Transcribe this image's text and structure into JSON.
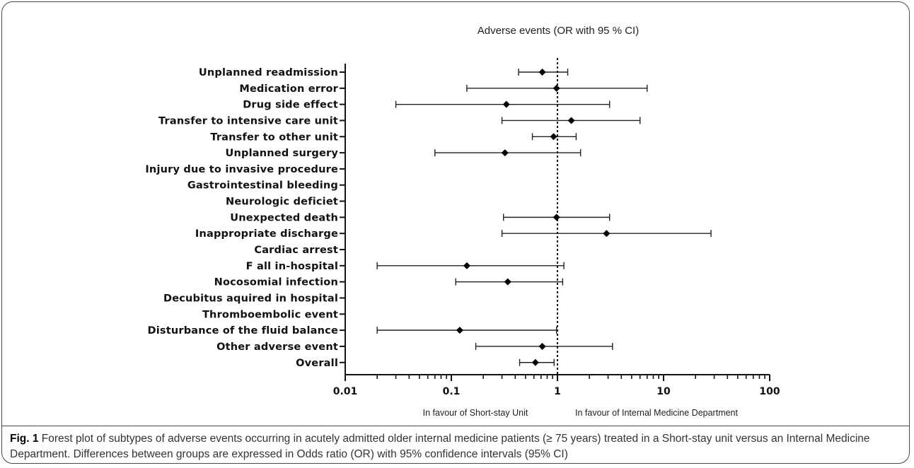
{
  "chart_data": {
    "type": "forest",
    "title": "Adverse events (OR with 95 % CI)",
    "x_scale": "log",
    "xlim": [
      0.01,
      100
    ],
    "x_ticks": [
      "0.01",
      "0.1",
      "1",
      "10",
      "100"
    ],
    "reference_line": 1,
    "rows": [
      {
        "label": "Unplanned readmission",
        "or": 0.72,
        "lo": 0.43,
        "hi": 1.25
      },
      {
        "label": "Medication error",
        "or": 0.98,
        "lo": 0.14,
        "hi": 7.0
      },
      {
        "label": "Drug side effect",
        "or": 0.33,
        "lo": 0.03,
        "hi": 3.1
      },
      {
        "label": "Transfer to intensive care unit",
        "or": 1.35,
        "lo": 0.3,
        "hi": 6.0
      },
      {
        "label": "Transfer to other unit",
        "or": 0.92,
        "lo": 0.58,
        "hi": 1.5
      },
      {
        "label": "Unplanned surgery",
        "or": 0.32,
        "lo": 0.07,
        "hi": 1.65
      },
      {
        "label": "Injury due to invasive procedure",
        "or": null,
        "lo": null,
        "hi": null
      },
      {
        "label": "Gastrointestinal bleeding",
        "or": null,
        "lo": null,
        "hi": null
      },
      {
        "label": "Neurologic deficiet",
        "or": null,
        "lo": null,
        "hi": null
      },
      {
        "label": "Unexpected death",
        "or": 0.98,
        "lo": 0.31,
        "hi": 3.1
      },
      {
        "label": "Inappropriate discharge",
        "or": 2.9,
        "lo": 0.3,
        "hi": 28.0
      },
      {
        "label": "Cardiac arrest",
        "or": null,
        "lo": null,
        "hi": null
      },
      {
        "label": "F all in-hospital",
        "or": 0.14,
        "lo": 0.02,
        "hi": 1.15
      },
      {
        "label": "Nocosomial infection",
        "or": 0.34,
        "lo": 0.11,
        "hi": 1.12
      },
      {
        "label": "Decubitus aquired in hospital",
        "or": null,
        "lo": null,
        "hi": null
      },
      {
        "label": "Thromboembolic event",
        "or": null,
        "lo": null,
        "hi": null
      },
      {
        "label": "Disturbance of the fluid balance",
        "or": 0.12,
        "lo": 0.02,
        "hi": 0.98
      },
      {
        "label": "Other adverse event",
        "or": 0.72,
        "lo": 0.17,
        "hi": 3.3
      },
      {
        "label": "Overall",
        "or": 0.62,
        "lo": 0.44,
        "hi": 0.93
      }
    ],
    "favour_left": "In favour of Short-stay Unit",
    "favour_right": "In favour of Internal Medicine Department",
    "grid": false
  },
  "caption": {
    "label": "Fig. 1",
    "text": " Forest plot of subtypes of adverse events occurring in acutely admitted older internal medicine patients (≥ 75 years) treated in a Short-stay unit versus an Internal Medicine Department. Differences between groups are expressed in Odds ratio (OR) with 95% confidence intervals (95% CI)"
  }
}
